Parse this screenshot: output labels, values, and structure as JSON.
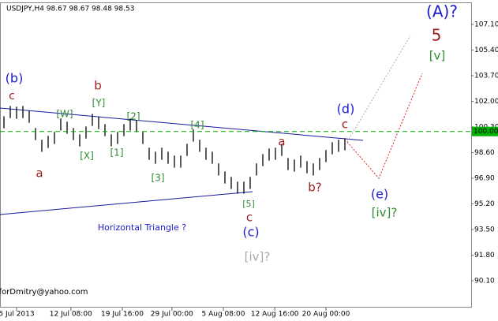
{
  "chart_data": {
    "type": "ohlc",
    "title": "USDJPY,H4  98.67 98.67 98.48 98.53",
    "bar_color": "#000000",
    "ylim": [
      88.32,
      108.51
    ],
    "yticks": [
      {
        "value": 107.1,
        "label": "107.10"
      },
      {
        "value": 105.4,
        "label": "105.40"
      },
      {
        "value": 103.7,
        "label": "103.70"
      },
      {
        "value": 102.0,
        "label": "102.00"
      },
      {
        "value": 100.3,
        "label": "100.30"
      },
      {
        "value": 98.6,
        "label": "98.60"
      },
      {
        "value": 96.9,
        "label": "96.90"
      },
      {
        "value": 95.2,
        "label": "95.20"
      },
      {
        "value": 93.5,
        "label": "93.50"
      },
      {
        "value": 91.8,
        "label": "91.80"
      },
      {
        "value": 90.1,
        "label": "90.10"
      }
    ],
    "xlim": [
      0,
      74
    ],
    "xticks": [
      {
        "value": 2,
        "label": "5 Jul 2013"
      },
      {
        "value": 10.6,
        "label": "12 Jul 08:00"
      },
      {
        "value": 18.75,
        "label": "19 Jul 16:00"
      },
      {
        "value": 26.6,
        "label": "29 Jul 00:00"
      },
      {
        "value": 34.75,
        "label": "5 Aug 08:00"
      },
      {
        "value": 42.9,
        "label": "12 Aug 16:00"
      },
      {
        "value": 51,
        "label": "20 Aug 00:00"
      }
    ],
    "high": [
      101.01,
      101.69,
      101.64,
      101.69,
      101.38,
      100.23,
      99.45,
      99.71,
      99.97,
      100.86,
      100.65,
      100.23,
      99.81,
      100.33,
      101.17,
      100.96,
      100.49,
      99.81,
      99.97,
      100.49,
      100.86,
      100.75,
      99.97,
      98.92,
      98.66,
      98.92,
      98.66,
      98.4,
      98.4,
      99.18,
      100.13,
      99.45,
      98.92,
      98.66,
      97.88,
      97.35,
      96.99,
      96.67,
      96.67,
      96.99,
      97.88,
      98.5,
      98.87,
      98.92,
      99.18,
      98.24,
      98.14,
      98.4,
      98.03,
      97.88,
      98.24,
      98.77,
      99.29,
      99.45,
      99.55
    ],
    "low": [
      100.21,
      100.89,
      100.84,
      100.89,
      100.58,
      99.43,
      98.65,
      98.91,
      99.17,
      100.06,
      99.85,
      99.43,
      99.01,
      99.53,
      100.37,
      100.16,
      99.69,
      99.01,
      99.17,
      99.69,
      100.06,
      99.95,
      99.17,
      98.12,
      97.86,
      98.12,
      97.86,
      97.6,
      97.6,
      98.38,
      99.33,
      98.65,
      98.12,
      97.86,
      97.08,
      96.55,
      96.19,
      95.87,
      95.87,
      96.19,
      97.08,
      97.7,
      98.07,
      98.12,
      98.38,
      97.44,
      97.34,
      97.6,
      97.23,
      97.08,
      97.44,
      97.97,
      98.49,
      98.65,
      98.75
    ],
    "price_line": {
      "value": 100.0,
      "label": "100.00",
      "color": "#00b000"
    },
    "annotations": [
      {
        "text": "(A)?",
        "color": "#1c1ccc"
      },
      {
        "text": "5",
        "color": "#9b1c1c"
      },
      {
        "text": "[v]",
        "color": "#2e8b2e"
      },
      {
        "text": "(b)",
        "color": "#1c1ccc"
      },
      {
        "text": "c",
        "color": "#9b1c1c"
      },
      {
        "text": "b",
        "color": "#9b1c1c"
      },
      {
        "text": "[Y]",
        "color": "#2e8b2e"
      },
      {
        "text": "[W]",
        "color": "#2e8b2e"
      },
      {
        "text": "[2]",
        "color": "#2e8b2e"
      },
      {
        "text": "[4]",
        "color": "#2e8b2e"
      },
      {
        "text": "[X]",
        "color": "#2e8b2e"
      },
      {
        "text": "[1]",
        "color": "#2e8b2e"
      },
      {
        "text": "[3]",
        "color": "#2e8b2e"
      },
      {
        "text": "a",
        "color": "#9b1c1c"
      },
      {
        "text": "a",
        "color": "#9b1c1c"
      },
      {
        "text": "(d)",
        "color": "#1c1ccc"
      },
      {
        "text": "c",
        "color": "#9b1c1c"
      },
      {
        "text": "b?",
        "color": "#9b1c1c"
      },
      {
        "text": "(e)",
        "color": "#1c1ccc"
      },
      {
        "text": "[iv]?",
        "color": "#2e8b2e"
      },
      {
        "text": "[5]",
        "color": "#2e8b2e"
      },
      {
        "text": "c",
        "color": "#9b1c1c"
      },
      {
        "text": "(c)",
        "color": "#1c1ccc"
      },
      {
        "text": "Horizontal Triangle ?",
        "color": "#1c1ccc"
      },
      {
        "text": "[iv]?",
        "color": "#aaaaaa"
      },
      {
        "text": "forDmitry@yahoo.com",
        "color": "#000000"
      }
    ]
  }
}
